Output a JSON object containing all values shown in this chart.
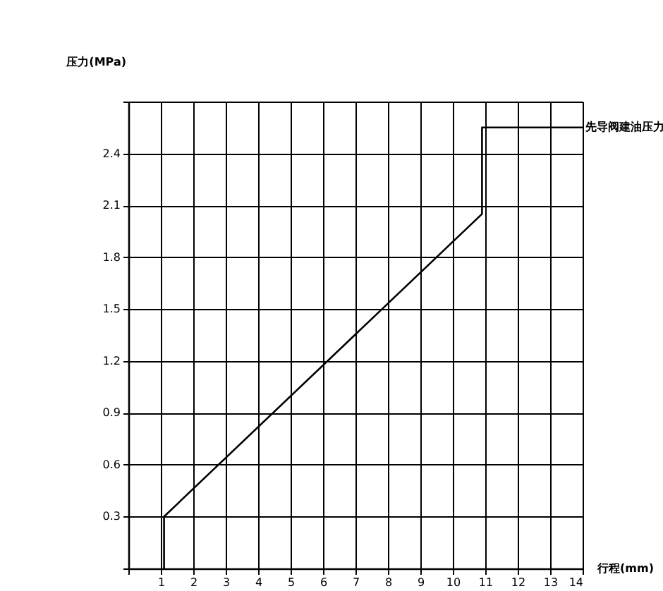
{
  "chart_data": {
    "type": "line",
    "xlabel": "行程(mm)",
    "ylabel": "压力(MPa)",
    "xlim": [
      0,
      14
    ],
    "xticks": [
      {
        "value": 0,
        "label": null
      },
      1,
      2,
      3,
      4,
      5,
      6,
      7,
      8,
      9,
      10,
      11,
      12,
      13,
      14
    ],
    "ylim": [
      0,
      2.7
    ],
    "yticks": [
      {
        "value": 0,
        "label": null
      },
      0.3,
      0.6,
      0.9,
      1.2,
      1.5,
      1.8,
      2.1,
      2.4,
      {
        "value": 2.7,
        "label": null
      }
    ],
    "grid": true,
    "marker": "none",
    "series": [
      {
        "color": "#000000",
        "x": [
          1.1,
          1.1,
          10.9,
          10.9,
          14
        ],
        "values": [
          0,
          0.3,
          2.05,
          2.55,
          2.55
        ]
      }
    ],
    "annotations": [
      {
        "text": "先导阀建油压力",
        "x": 14,
        "y": 2.55
      }
    ]
  }
}
